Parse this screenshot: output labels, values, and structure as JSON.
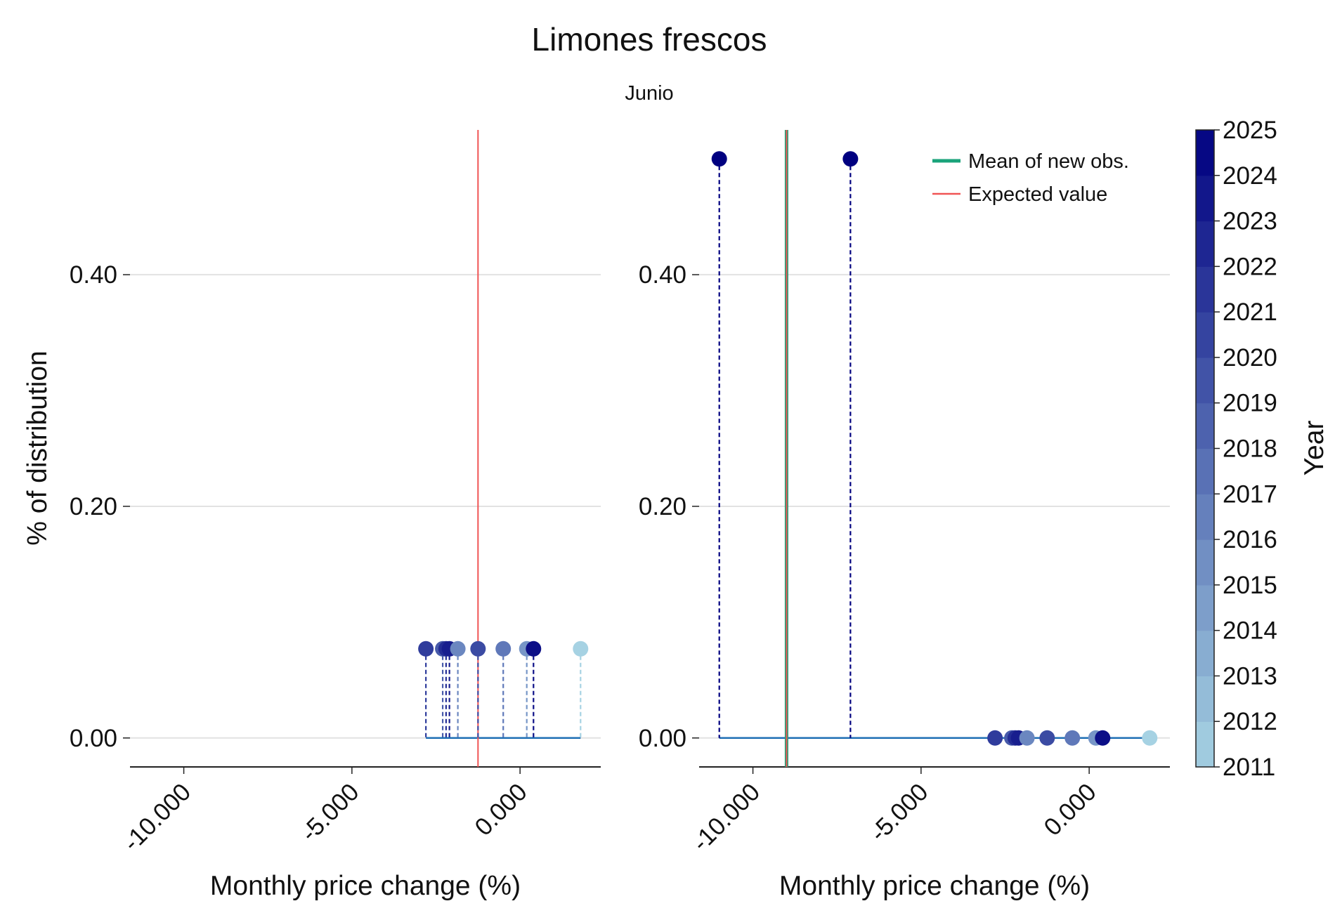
{
  "chart_data": {
    "type": "scatter",
    "title": "Limones frescos",
    "subtitle": "Junio",
    "colors": {
      "series_line": "#1f6fb4",
      "mean_new_obs": "#1aa37a",
      "expected_value": "#f05454",
      "grid": "#e2e2e2",
      "axis": "#222222",
      "year_scale": [
        "#a6d2e3",
        "#000080"
      ]
    },
    "colorbar": {
      "label": "Year",
      "ticks": [
        "2011",
        "2012",
        "2013",
        "2014",
        "2015",
        "2016",
        "2017",
        "2018",
        "2019",
        "2020",
        "2021",
        "2022",
        "2023",
        "2024",
        "2025"
      ]
    },
    "legend": {
      "placement": "top-right of right panel",
      "entries": [
        {
          "label": "Mean of new obs.",
          "color": "#1aa37a"
        },
        {
          "label": "Expected value",
          "color": "#f05454"
        }
      ]
    },
    "panels": [
      {
        "xlabel": "Monthly price change (%)",
        "ylabel": "% of distribution",
        "xlim": [
          -11.6,
          2.4
        ],
        "ylim": [
          -0.025,
          0.525
        ],
        "x_ticks": [
          -10,
          -5,
          0
        ],
        "x_tick_labels": [
          "-10.000",
          "-5.000",
          "0.000"
        ],
        "y_ticks": [
          0,
          0.2,
          0.4
        ],
        "y_tick_labels": [
          "0.00",
          "0.20",
          "0.40"
        ],
        "grid": true,
        "expected_value": -1.25,
        "baseline_range": [
          -2.8,
          1.8
        ],
        "points": [
          {
            "year": 2021,
            "x": -2.8,
            "y": 0.077
          },
          {
            "year": 2019,
            "x": -2.3,
            "y": 0.077
          },
          {
            "year": 2022,
            "x": -2.2,
            "y": 0.077
          },
          {
            "year": 2023,
            "x": -2.1,
            "y": 0.077
          },
          {
            "year": 2016,
            "x": -1.85,
            "y": 0.077
          },
          {
            "year": 2020,
            "x": -1.25,
            "y": 0.077
          },
          {
            "year": 2017,
            "x": -0.5,
            "y": 0.077
          },
          {
            "year": 2015,
            "x": 0.2,
            "y": 0.077
          },
          {
            "year": 2024,
            "x": 0.4,
            "y": 0.077
          },
          {
            "year": 2011,
            "x": 1.8,
            "y": 0.077
          }
        ]
      },
      {
        "xlabel": "Monthly price change (%)",
        "xlim": [
          -11.6,
          2.4
        ],
        "ylim": [
          -0.025,
          0.525
        ],
        "x_ticks": [
          -10,
          -5,
          0
        ],
        "x_tick_labels": [
          "-10.000",
          "-5.000",
          "0.000"
        ],
        "y_ticks": [
          0,
          0.2,
          0.4
        ],
        "y_tick_labels": [
          "0.00",
          "0.20",
          "0.40"
        ],
        "grid": true,
        "expected_value": -9.0,
        "mean_new_obs": -9.0,
        "baseline_range": [
          -11.0,
          1.8
        ],
        "new_points": [
          {
            "year": 2025,
            "x": -11.0,
            "y": 0.5
          },
          {
            "year": 2025,
            "x": -7.1,
            "y": 0.5
          }
        ],
        "points": [
          {
            "year": 2021,
            "x": -2.8,
            "y": 0
          },
          {
            "year": 2019,
            "x": -2.3,
            "y": 0
          },
          {
            "year": 2022,
            "x": -2.2,
            "y": 0
          },
          {
            "year": 2023,
            "x": -2.1,
            "y": 0
          },
          {
            "year": 2016,
            "x": -1.85,
            "y": 0
          },
          {
            "year": 2020,
            "x": -1.25,
            "y": 0
          },
          {
            "year": 2017,
            "x": -0.5,
            "y": 0
          },
          {
            "year": 2015,
            "x": 0.2,
            "y": 0
          },
          {
            "year": 2024,
            "x": 0.4,
            "y": 0
          },
          {
            "year": 2011,
            "x": 1.8,
            "y": 0
          }
        ]
      }
    ]
  }
}
